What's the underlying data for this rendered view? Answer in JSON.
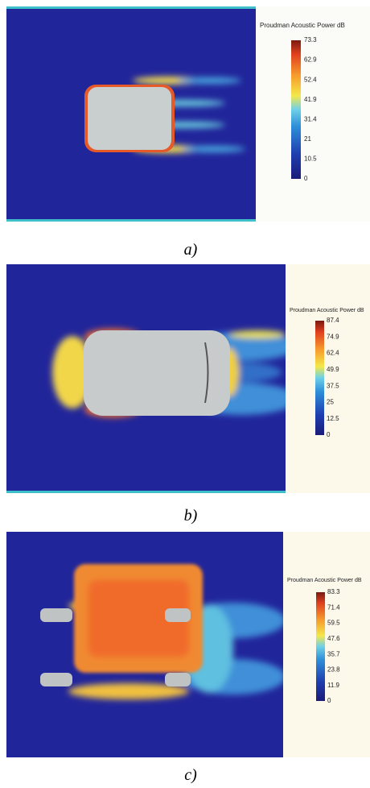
{
  "panels": [
    {
      "caption": "a)",
      "colorbar": {
        "title": "Proudman Acoustic Power dB",
        "ticks": [
          "73.3",
          "62.9",
          "52.4",
          "41.9",
          "31.4",
          "21",
          "10.5",
          "0"
        ]
      }
    },
    {
      "caption": "b)",
      "colorbar": {
        "title": "Proudman Acoustic Power dB",
        "ticks": [
          "87.4",
          "74.9",
          "62.4",
          "49.9",
          "37.5",
          "25",
          "12.5",
          "0"
        ]
      }
    },
    {
      "caption": "c)",
      "colorbar": {
        "title": "Proudman Acoustic Power dB",
        "ticks": [
          "83.3",
          "71.4",
          "59.5",
          "47.6",
          "35.7",
          "23.8",
          "11.9",
          "0"
        ]
      }
    }
  ]
}
